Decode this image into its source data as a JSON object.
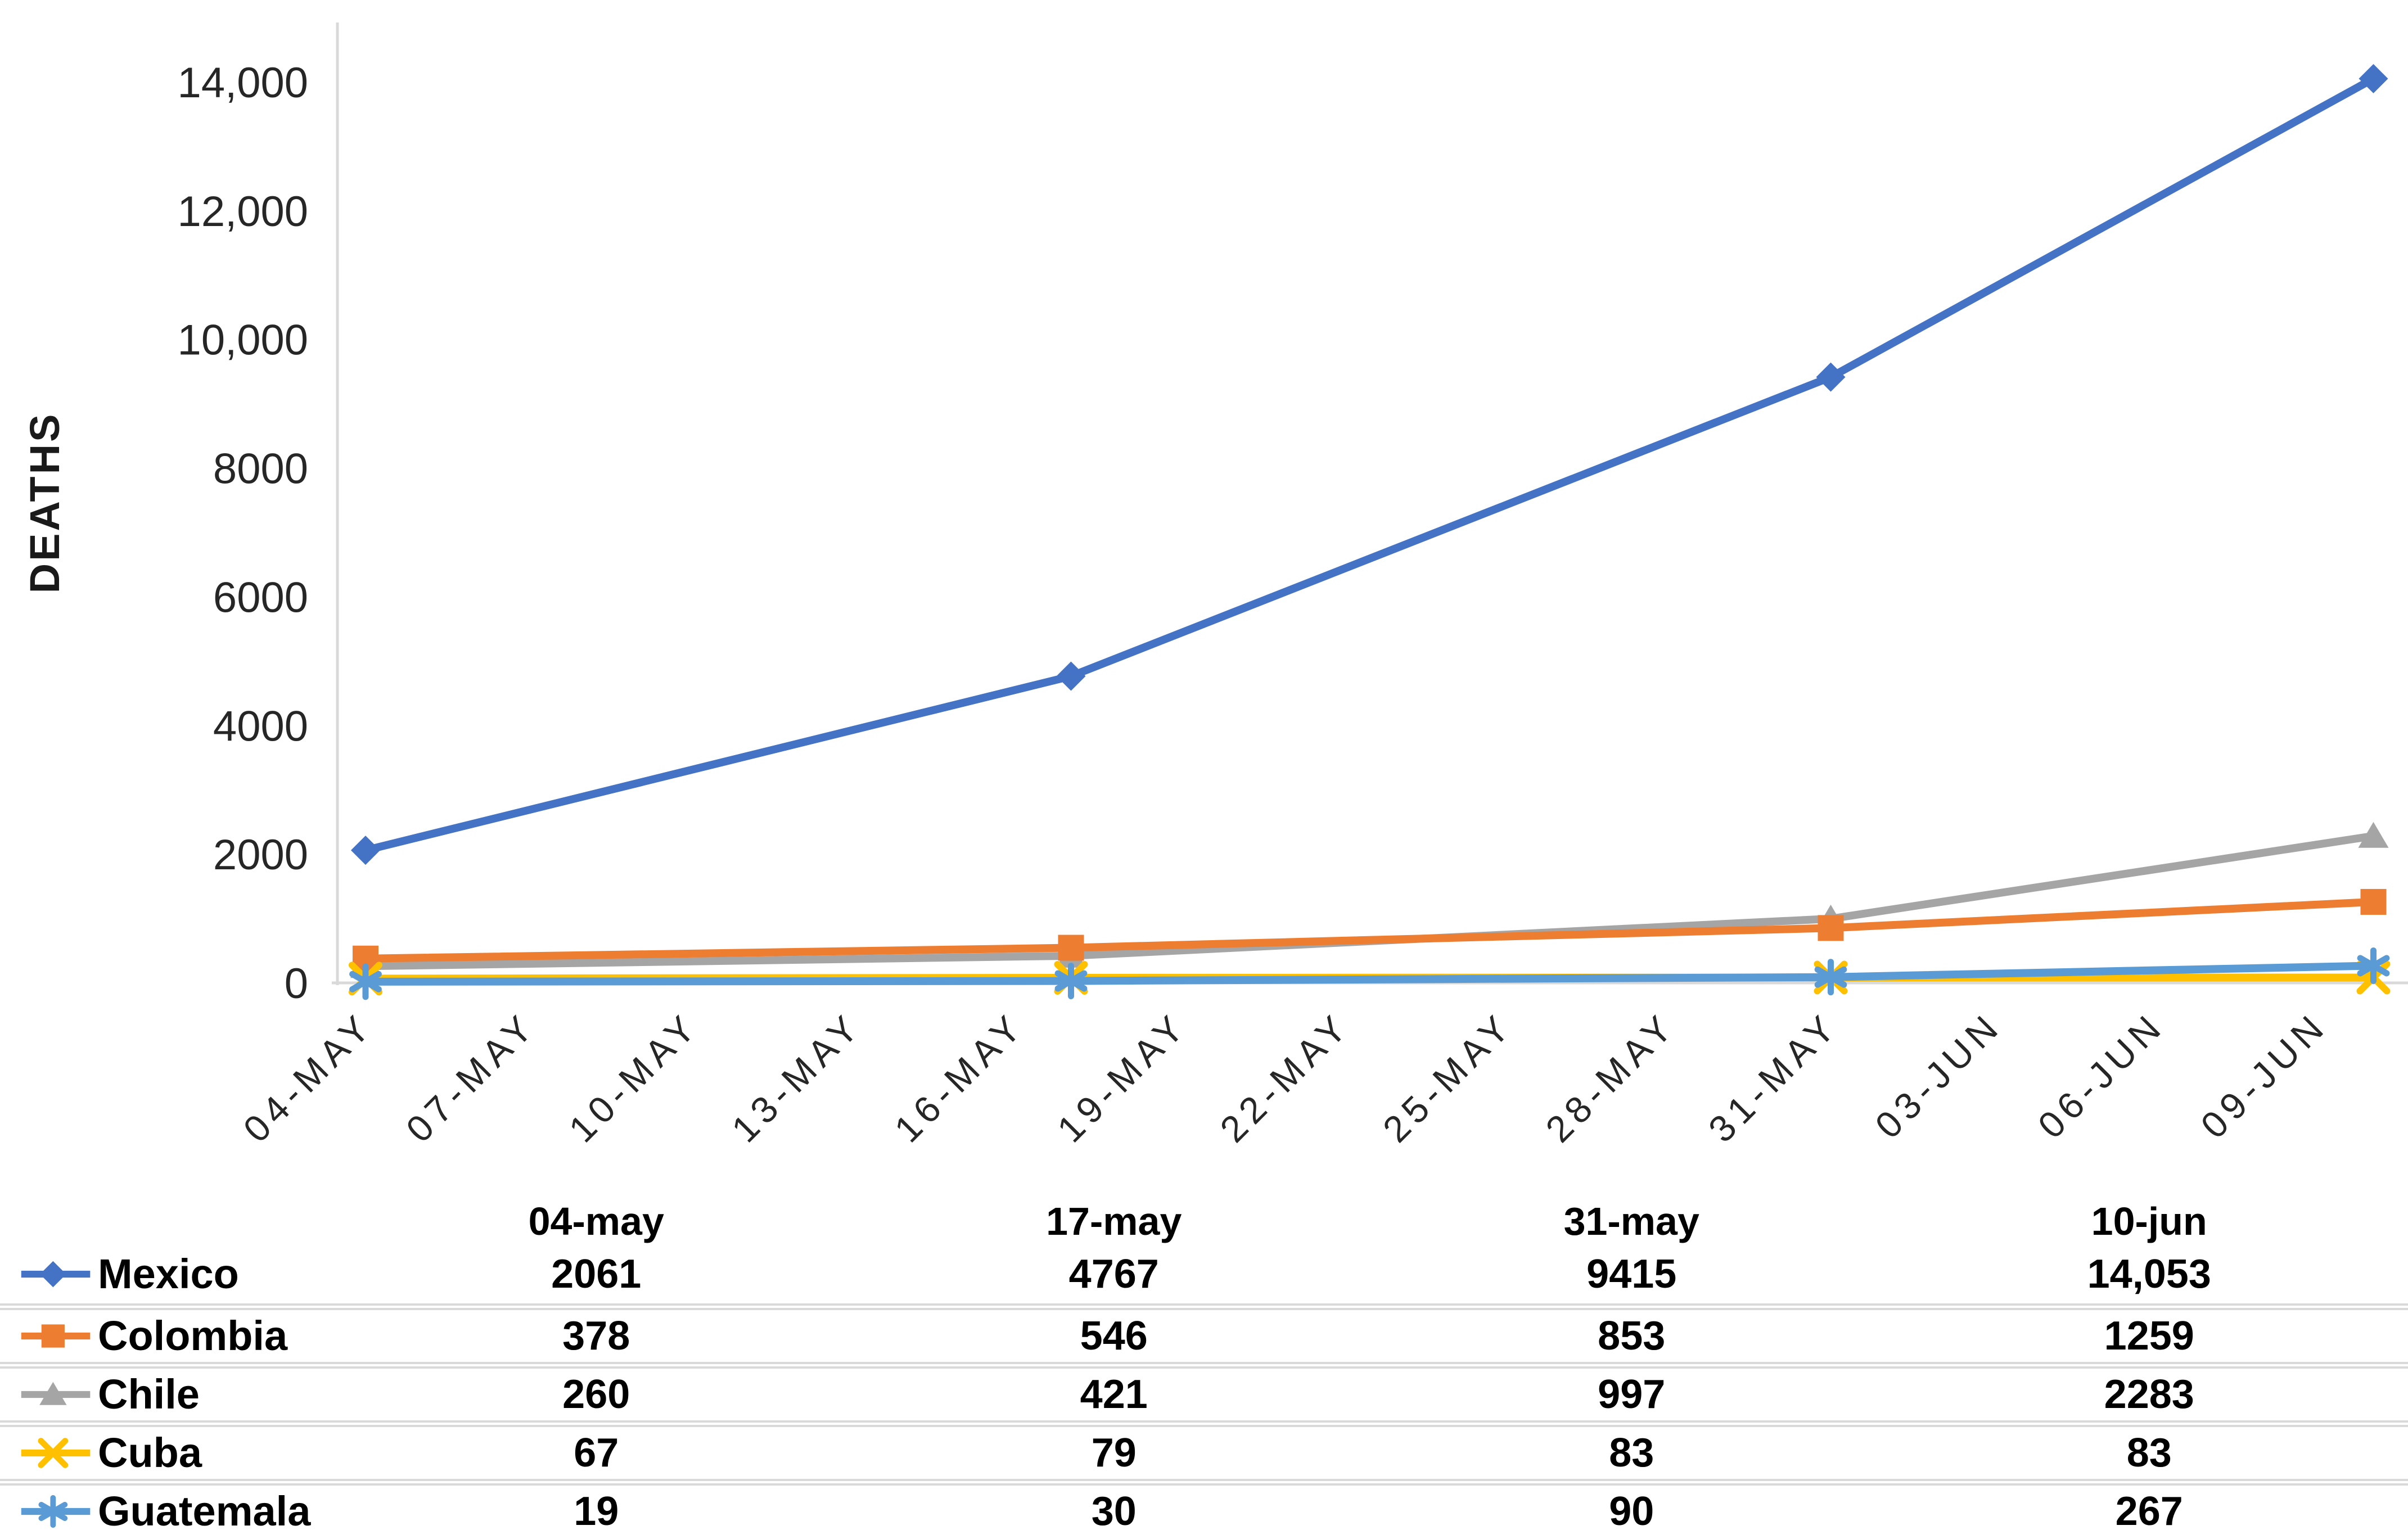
{
  "chart_data": {
    "type": "line",
    "title": "",
    "xlabel": "",
    "ylabel": "DEATHS",
    "ylim": [
      0,
      14000
    ],
    "grid": false,
    "legend_position": "table-left",
    "axis_color": "#d9d9d9",
    "tick_text_color": "#262626",
    "y_ticks": [
      {
        "value": 0,
        "label": "0"
      },
      {
        "value": 2000,
        "label": "2000"
      },
      {
        "value": 4000,
        "label": "4000"
      },
      {
        "value": 6000,
        "label": "6000"
      },
      {
        "value": 8000,
        "label": "8000"
      },
      {
        "value": 10000,
        "label": "10,000"
      },
      {
        "value": 12000,
        "label": "12,000"
      },
      {
        "value": 14000,
        "label": "14,000"
      }
    ],
    "x_ticks": [
      {
        "day": 0,
        "label": "04-MAY"
      },
      {
        "day": 3,
        "label": "07-MAY"
      },
      {
        "day": 6,
        "label": "10-MAY"
      },
      {
        "day": 9,
        "label": "13-MAY"
      },
      {
        "day": 12,
        "label": "16-MAY"
      },
      {
        "day": 15,
        "label": "19-MAY"
      },
      {
        "day": 18,
        "label": "22-MAY"
      },
      {
        "day": 21,
        "label": "25-MAY"
      },
      {
        "day": 24,
        "label": "28-MAY"
      },
      {
        "day": 27,
        "label": "31-MAY"
      },
      {
        "day": 30,
        "label": "03-JUN"
      },
      {
        "day": 33,
        "label": "06-JUN"
      },
      {
        "day": 36,
        "label": "09-JUN"
      }
    ],
    "point_days": [
      0,
      13,
      27,
      37
    ],
    "point_labels": [
      "04-may",
      "17-may",
      "31-may",
      "10-jun"
    ],
    "series": [
      {
        "name": "Mexico",
        "color": "#4472C4",
        "marker": "diamond",
        "values": [
          2061,
          4767,
          9415,
          14053
        ]
      },
      {
        "name": "Colombia",
        "color": "#ED7D31",
        "marker": "square",
        "values": [
          378,
          546,
          853,
          1259
        ]
      },
      {
        "name": "Chile",
        "color": "#A5A5A5",
        "marker": "triangle",
        "values": [
          260,
          421,
          997,
          2283
        ]
      },
      {
        "name": "Cuba",
        "color": "#FFC000",
        "marker": "x",
        "values": [
          67,
          79,
          83,
          83
        ]
      },
      {
        "name": "Guatemala",
        "color": "#5B9BD5",
        "marker": "asterisk",
        "values": [
          19,
          30,
          90,
          267
        ]
      }
    ]
  },
  "table": {
    "col_headers": [
      "04-may",
      "17-may",
      "31-may",
      "10-jun"
    ],
    "rows": [
      {
        "country": "Mexico",
        "values": [
          "2061",
          "4767",
          "9415",
          "14,053"
        ]
      },
      {
        "country": "Colombia",
        "values": [
          "378",
          "546",
          "853",
          "1259"
        ]
      },
      {
        "country": "Chile",
        "values": [
          "260",
          "421",
          "997",
          "2283"
        ]
      },
      {
        "country": "Cuba",
        "values": [
          "67",
          "79",
          "83",
          "83"
        ]
      },
      {
        "country": "Guatemala",
        "values": [
          "19",
          "30",
          "90",
          "267"
        ]
      }
    ]
  }
}
